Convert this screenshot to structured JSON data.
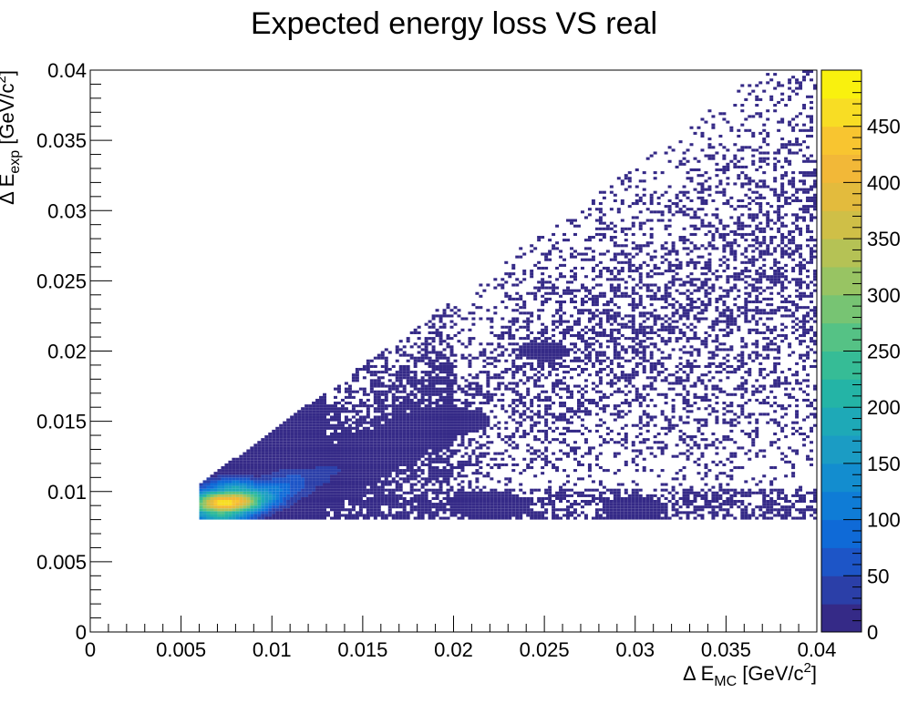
{
  "chart_data": {
    "type": "heatmap",
    "title": "Expected energy loss VS real",
    "xlabel": {
      "prefix": "Δ E",
      "sub": "MC",
      "unit_open": " [GeV/c",
      "sup": "2",
      "unit_close": "]"
    },
    "ylabel": {
      "prefix": "Δ E",
      "sub": "exp",
      "unit_open": " [GeV/c",
      "sup": "2",
      "unit_close": "]"
    },
    "xlim": [
      0,
      0.04
    ],
    "ylim": [
      0,
      0.04
    ],
    "x_ticks": [
      "0",
      "0.005",
      "0.01",
      "0.015",
      "0.02",
      "0.025",
      "0.03",
      "0.035",
      "0.04"
    ],
    "y_ticks": [
      "0",
      "0.005",
      "0.01",
      "0.015",
      "0.02",
      "0.025",
      "0.03",
      "0.035",
      "0.04"
    ],
    "z_range": [
      0,
      500
    ],
    "z_ticks": [
      "0",
      "50",
      "100",
      "150",
      "200",
      "250",
      "300",
      "350",
      "400",
      "450"
    ],
    "bins": {
      "nx": 200,
      "ny": 200
    },
    "palette": [
      "#352a87",
      "#2b3fa8",
      "#1d55c7",
      "#0f6ad7",
      "#0f7cd6",
      "#138dcf",
      "#1b9cc4",
      "#1ea9b7",
      "#24b4a6",
      "#36bc96",
      "#55c285",
      "#77c473",
      "#98c463",
      "#b5c255",
      "#cfbf47",
      "#e3bb3d",
      "#f2b838",
      "#f8c530",
      "#f8dd24",
      "#f9f10e"
    ],
    "grid": false,
    "legend": "right colorbar",
    "cells": [
      {
        "x": 0.0074,
        "y": 0.0092,
        "z": 480
      },
      {
        "x": 0.0079,
        "y": 0.0093,
        "z": 440
      },
      {
        "x": 0.007,
        "y": 0.0091,
        "z": 380
      },
      {
        "x": 0.0084,
        "y": 0.0095,
        "z": 300
      },
      {
        "x": 0.0089,
        "y": 0.0096,
        "z": 220
      },
      {
        "x": 0.0065,
        "y": 0.009,
        "z": 240
      },
      {
        "x": 0.0072,
        "y": 0.0086,
        "z": 260
      },
      {
        "x": 0.008,
        "y": 0.01,
        "z": 200
      },
      {
        "x": 0.0094,
        "y": 0.0098,
        "z": 150
      },
      {
        "x": 0.01,
        "y": 0.0101,
        "z": 110
      },
      {
        "x": 0.0106,
        "y": 0.0104,
        "z": 80
      },
      {
        "x": 0.0112,
        "y": 0.0108,
        "z": 60
      },
      {
        "x": 0.012,
        "y": 0.011,
        "z": 45
      },
      {
        "x": 0.013,
        "y": 0.0115,
        "z": 30
      },
      {
        "x": 0.014,
        "y": 0.012,
        "z": 20
      },
      {
        "x": 0.016,
        "y": 0.013,
        "z": 10
      },
      {
        "x": 0.018,
        "y": 0.014,
        "z": 6
      },
      {
        "x": 0.02,
        "y": 0.015,
        "z": 4
      },
      {
        "x": 0.022,
        "y": 0.009,
        "z": 5
      },
      {
        "x": 0.03,
        "y": 0.0088,
        "z": 3
      },
      {
        "x": 0.025,
        "y": 0.02,
        "z": 2
      },
      {
        "x": 0.03,
        "y": 0.025,
        "z": 1
      }
    ]
  }
}
